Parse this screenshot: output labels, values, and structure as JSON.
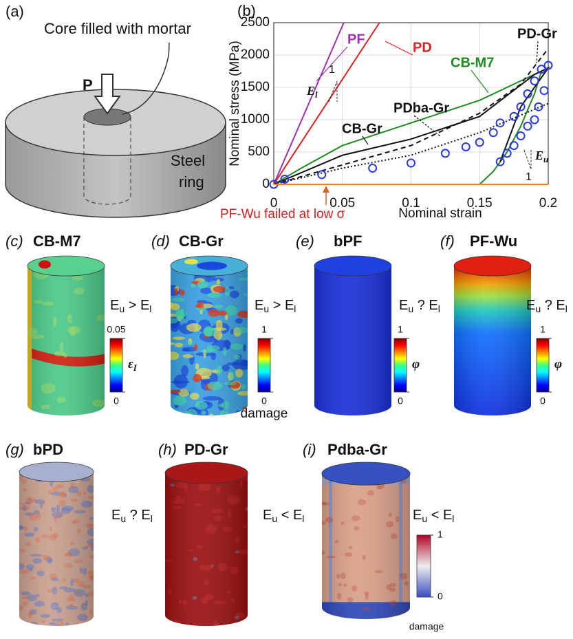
{
  "chart_data": {
    "type": "line",
    "panel_label": "(b)",
    "xlabel": "Nominal strain",
    "ylabel": "Nominal stress (MPa)",
    "xlim": [
      0,
      0.2
    ],
    "ylim": [
      0,
      2500
    ],
    "xticks": [
      0,
      0.05,
      0.1,
      0.15,
      0.2
    ],
    "yticks": [
      0,
      500,
      1000,
      1500,
      2000,
      2500
    ],
    "grid": true,
    "series": [
      {
        "name": "PF",
        "color": "#9b30b0",
        "dash": "solid",
        "x": [
          0,
          0.051
        ],
        "values": [
          0,
          2500
        ]
      },
      {
        "name": "PD",
        "color": "#e02020",
        "dash": "solid",
        "x": [
          0,
          0.077
        ],
        "values": [
          0,
          2500
        ]
      },
      {
        "name": "CB-M7",
        "color": "#1f8a1f",
        "dash": "solid",
        "x": [
          0,
          0.02,
          0.05,
          0.1,
          0.15,
          0.185,
          0.195,
          0.19,
          0.18,
          0.17,
          0.16,
          0.15
        ],
        "values": [
          0,
          250,
          600,
          950,
          1300,
          1650,
          1750,
          1400,
          900,
          500,
          200,
          0
        ]
      },
      {
        "name": "PD-Gr",
        "color": "#111111",
        "dash": "dashed",
        "x": [
          0,
          0.05,
          0.1,
          0.15,
          0.18,
          0.2
        ],
        "values": [
          0,
          300,
          600,
          1100,
          1550,
          2100
        ]
      },
      {
        "name": "PDba-Gr",
        "color": "#111111",
        "dash": "dotted",
        "x": [
          0,
          0.05,
          0.1,
          0.15,
          0.2
        ],
        "values": [
          0,
          250,
          450,
          800,
          1250
        ]
      },
      {
        "name": "CB-Gr",
        "color": "#111111",
        "dash": "solid",
        "x": [
          0,
          0.05,
          0.1,
          0.15,
          0.19,
          0.2,
          0.18,
          0.165
        ],
        "values": [
          0,
          450,
          700,
          1050,
          1700,
          1800,
          1200,
          350
        ]
      },
      {
        "type": "scatter",
        "color": "#2a3ae0",
        "x": [
          0,
          0.008,
          0.035,
          0.072,
          0.1,
          0.125,
          0.14,
          0.15,
          0.16,
          0.165,
          0.175,
          0.18,
          0.185,
          0.19,
          0.195,
          0.2,
          0.197,
          0.193,
          0.19,
          0.185,
          0.18,
          0.175,
          0.17,
          0.165
        ],
        "values": [
          0,
          80,
          150,
          250,
          330,
          480,
          580,
          650,
          800,
          950,
          1050,
          1200,
          1400,
          1600,
          1780,
          1840,
          1450,
          1200,
          1000,
          900,
          750,
          600,
          480,
          350
        ]
      },
      {
        "color": "#ff7f0e",
        "dash": "solid",
        "x": [
          0,
          0.2
        ],
        "values": [
          0,
          0
        ]
      }
    ],
    "annotations": {
      "el": "E",
      "el_sub": "l",
      "eu": "E",
      "eu_sub": "u",
      "slope_one": "1",
      "slope_one_u": "1",
      "failed": "PF-Wu failed at low σ"
    }
  },
  "figure": {
    "a": {
      "label": "(a)",
      "core": "Core filled with mortar",
      "load": "P",
      "ring": [
        "Steel",
        "ring"
      ]
    },
    "panels": [
      {
        "label": "(c)",
        "title": "CB-M7",
        "relation": {
          "a": "E",
          "a_sub": "u",
          "op": " > ",
          "b": "E",
          "b_sub": "l"
        },
        "colorbar": {
          "max": 0.05,
          "min": 0,
          "symbol": "ε",
          "symbol_sub": "I"
        }
      },
      {
        "label": "(d)",
        "title": "CB-Gr",
        "relation": {
          "a": "E",
          "a_sub": "u",
          "op": " > ",
          "b": "E",
          "b_sub": "l"
        },
        "colorbar": {
          "max": 1,
          "min": 0,
          "caption": "damage"
        }
      },
      {
        "label": "(e)",
        "title": "bPF",
        "relation": {
          "a": "E",
          "a_sub": "u",
          "op": " ? ",
          "b": "E",
          "b_sub": "l"
        },
        "colorbar": {
          "max": 1,
          "min": 0,
          "symbol": "φ"
        }
      },
      {
        "label": "(f)",
        "title": "PF-Wu",
        "relation": {
          "a": "E",
          "a_sub": "u",
          "op": " ? ",
          "b": "E",
          "b_sub": "l"
        },
        "colorbar": {
          "max": 1,
          "min": 0,
          "symbol": "φ"
        }
      },
      {
        "label": "(g)",
        "title": "bPD",
        "relation": {
          "a": "E",
          "a_sub": "u",
          "op": " ? ",
          "b": "E",
          "b_sub": "l"
        }
      },
      {
        "label": "(h)",
        "title": "PD-Gr",
        "relation": {
          "a": "E",
          "a_sub": "u",
          "op": " < ",
          "b": "E",
          "b_sub": "l"
        }
      },
      {
        "label": "(i)",
        "title": "Pdba-Gr",
        "relation": {
          "a": "E",
          "a_sub": "u",
          "op": " < ",
          "b": "E",
          "b_sub": "l"
        },
        "colorbar": {
          "max": 1,
          "min": 0,
          "caption": "damage"
        }
      }
    ]
  }
}
